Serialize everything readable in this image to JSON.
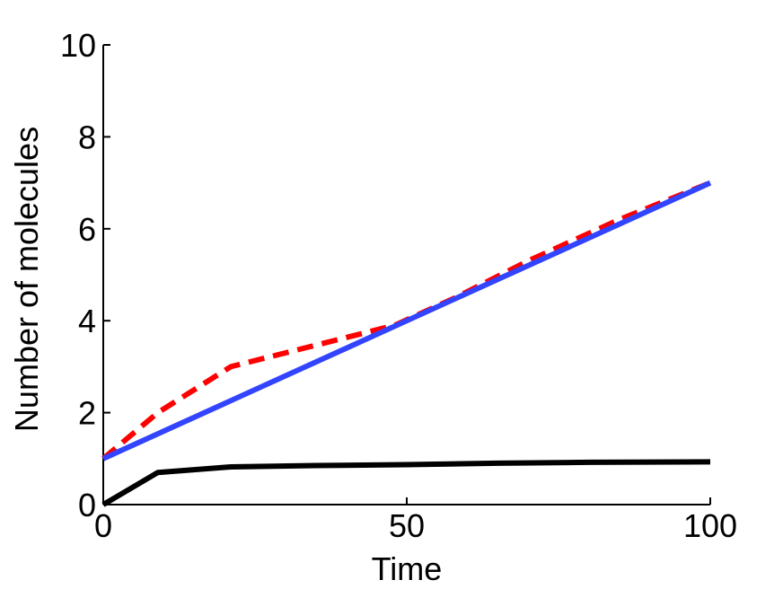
{
  "chart_data": {
    "type": "line",
    "title": "",
    "xlabel": "Time",
    "ylabel": "Number of molecules",
    "xlim": [
      0,
      100
    ],
    "ylim": [
      0,
      10
    ],
    "xticks": [
      0,
      50,
      100
    ],
    "yticks": [
      0,
      2,
      4,
      6,
      8,
      10
    ],
    "grid": false,
    "legend": "none",
    "series": [
      {
        "color": "#ff0000",
        "style": "dashed",
        "x": [
          0,
          9,
          21,
          33,
          48,
          58,
          70,
          85,
          100
        ],
        "y": [
          1.0,
          2.0,
          3.0,
          3.4,
          3.9,
          4.5,
          5.3,
          6.2,
          7.0
        ]
      },
      {
        "color": "#3344ff",
        "style": "solid",
        "x": [
          0,
          100
        ],
        "y": [
          1.0,
          7.0
        ]
      },
      {
        "color": "#000000",
        "style": "solid",
        "x": [
          0,
          9,
          21,
          35,
          50,
          65,
          80,
          100
        ],
        "y": [
          0.0,
          0.7,
          0.82,
          0.85,
          0.87,
          0.9,
          0.92,
          0.93
        ]
      }
    ]
  }
}
